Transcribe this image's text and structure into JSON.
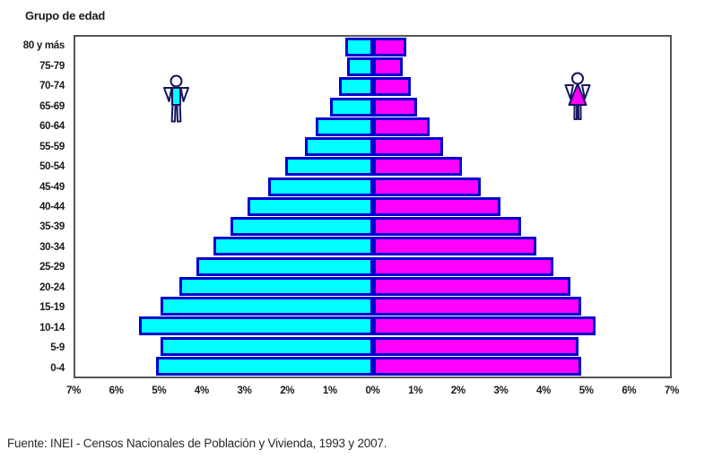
{
  "chart": {
    "title": "Grupo de edad",
    "source": "Fuente: INEI - Censos Nacionales de Población y Vivienda, 1993 y 2007."
  },
  "chart_data": {
    "type": "bar",
    "subtype": "population-pyramid",
    "title": "Grupo de edad",
    "categories": [
      "80 y más",
      "75-79",
      "70-74",
      "65-69",
      "60-64",
      "55-59",
      "50-54",
      "45-49",
      "40-44",
      "35-39",
      "30-34",
      "25-29",
      "20-24",
      "15-19",
      "10-14",
      "5-9",
      "0-4"
    ],
    "series": [
      {
        "name": "Hombres",
        "side": "left",
        "color": "#00FFFF",
        "values": [
          0.65,
          0.6,
          0.8,
          1.0,
          1.35,
          1.6,
          2.05,
          2.45,
          2.95,
          3.35,
          3.75,
          4.15,
          4.55,
          5.0,
          5.5,
          5.0,
          5.1
        ]
      },
      {
        "name": "Mujeres",
        "side": "right",
        "color": "#FF00FF",
        "values": [
          0.8,
          0.7,
          0.9,
          1.05,
          1.35,
          1.65,
          2.1,
          2.55,
          3.0,
          3.5,
          3.85,
          4.25,
          4.65,
          4.9,
          5.25,
          4.85,
          4.9
        ]
      }
    ],
    "x_ticks": [
      "7%",
      "6%",
      "5%",
      "4%",
      "3%",
      "2%",
      "1%",
      "0%",
      "1%",
      "2%",
      "3%",
      "4%",
      "5%",
      "6%",
      "7%"
    ],
    "xlim": [
      -7,
      7
    ],
    "x_unit": "%",
    "grid": false,
    "legend": "pictograms: male figure on left half, female figure on right half",
    "colors": {
      "male_fill": "#00FFFF",
      "female_fill": "#FF00FF",
      "bar_border": "#0000CC",
      "frame": "#555555",
      "icon_outline": "#151560",
      "text": "#1A1A1A"
    }
  }
}
